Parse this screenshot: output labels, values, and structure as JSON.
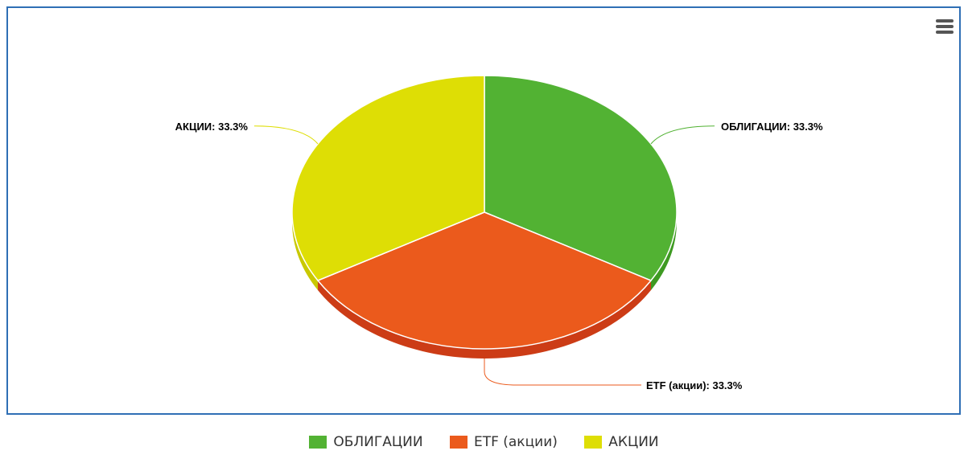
{
  "chart_data": {
    "type": "pie",
    "categories": [
      "ОБЛИГАЦИИ",
      "ETF (акции)",
      "АКЦИИ"
    ],
    "values": [
      33.3,
      33.3,
      33.3
    ],
    "labels": [
      "ОБЛИГАЦИИ: 33.3%",
      "ETF (акции): 33.3%",
      "АКЦИИ: 33.3%"
    ],
    "colors": [
      "#52b233",
      "#eb5a1c",
      "#dede05"
    ],
    "side_colors": [
      "#3e9a22",
      "#cc3c16",
      "#c9c900"
    ],
    "legend_position": "bottom-center",
    "three_d": true
  },
  "legend": {
    "items": [
      {
        "label": "ОБЛИГАЦИИ",
        "color": "#52b233"
      },
      {
        "label": "ETF (акции)",
        "color": "#eb5a1c"
      },
      {
        "label": "АКЦИИ",
        "color": "#dede05"
      }
    ]
  },
  "toolbar": {
    "menu_icon": "hamburger-menu-icon"
  }
}
